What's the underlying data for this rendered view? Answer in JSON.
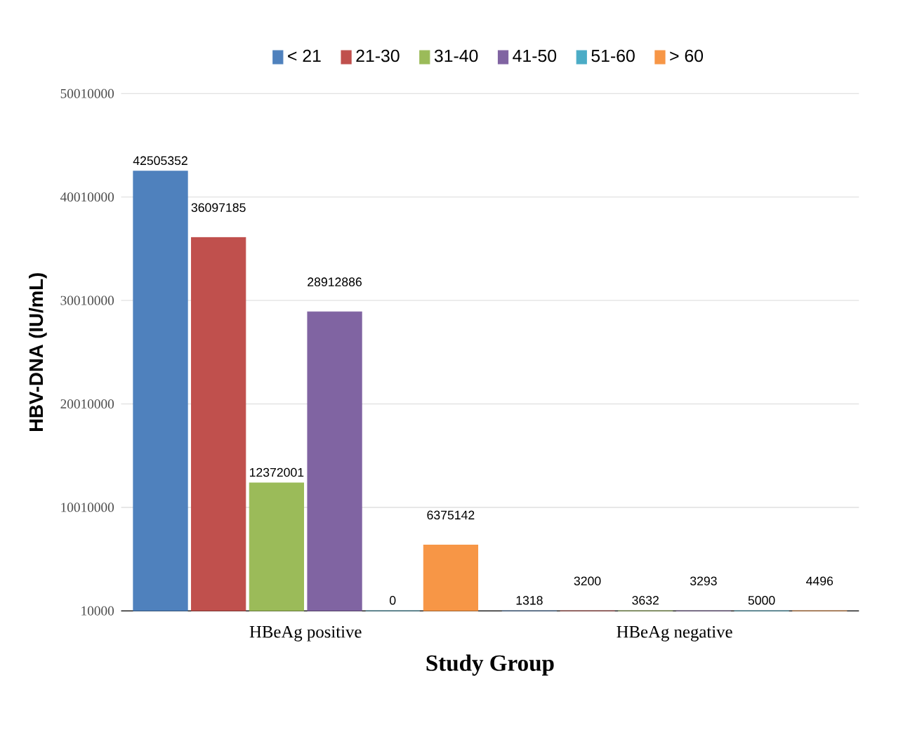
{
  "chart_data": {
    "type": "bar",
    "xlabel": "Study Group",
    "ylabel": "HBV-DNA (IU/mL)",
    "categories": [
      "HBeAg positive",
      "HBeAg negative"
    ],
    "series": [
      {
        "name": "< 21",
        "color": "#4f81bd",
        "values": [
          42505352,
          1318
        ]
      },
      {
        "name": "21-30",
        "color": "#c0504d",
        "values": [
          36097185,
          3200
        ]
      },
      {
        "name": "31-40",
        "color": "#9bbb59",
        "values": [
          12372001,
          3632
        ]
      },
      {
        "name": "41-50",
        "color": "#8064a2",
        "values": [
          28912886,
          3293
        ]
      },
      {
        "name": "51-60",
        "color": "#4bacc6",
        "values": [
          0,
          5000
        ]
      },
      {
        "name": "> 60",
        "color": "#f79646",
        "values": [
          6375142,
          4496
        ]
      }
    ],
    "ylim": [
      0,
      50010000
    ],
    "yticks": [
      10000,
      10010000,
      20010000,
      30010000,
      40010000,
      50010000
    ],
    "grid": "y",
    "legend": "top",
    "data_labels": true
  }
}
